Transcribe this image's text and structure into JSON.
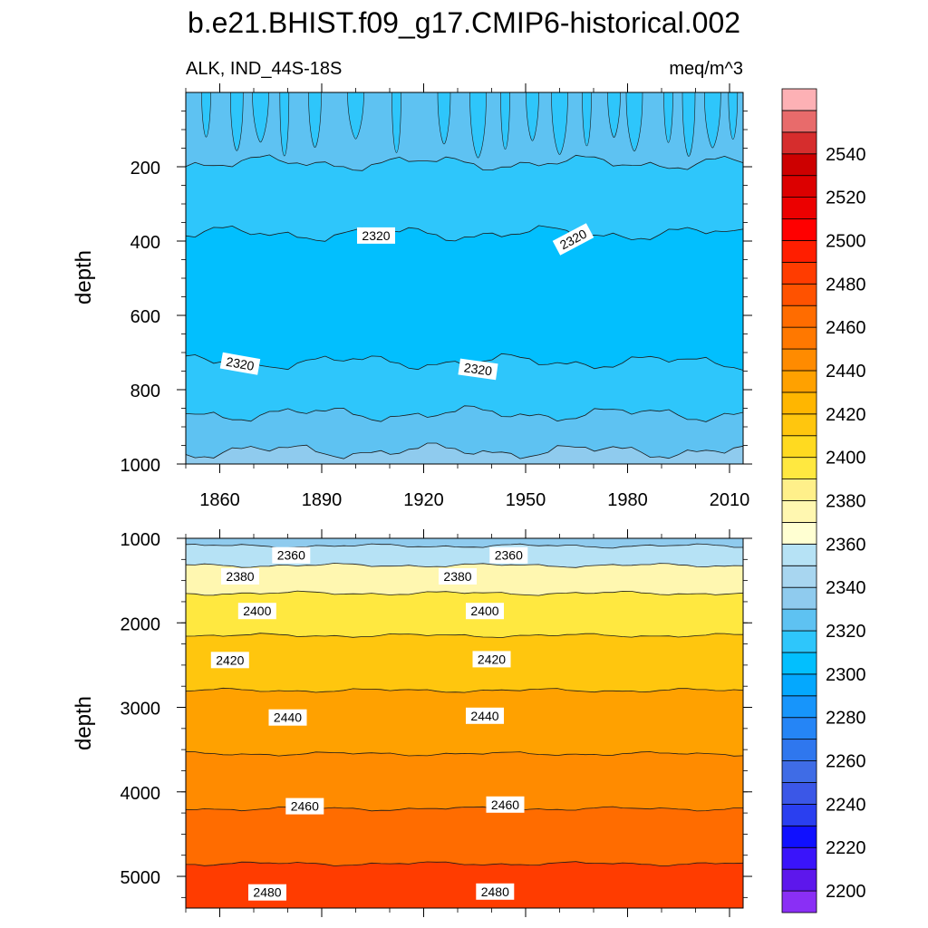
{
  "title": "b.e21.BHIST.f09_g17.CMIP6-historical.002",
  "subtitle_left": "ALK, IND_44S-18S",
  "subtitle_right": "meq/m^3",
  "chart_data": [
    {
      "type": "contour",
      "panel": "upper",
      "xlabel": "",
      "ylabel": "depth",
      "xlim": [
        1850,
        2014
      ],
      "ylim": [
        1000,
        0
      ],
      "x_ticks": [
        1860,
        1890,
        1920,
        1950,
        1980,
        2010
      ],
      "x_tick_labels": [
        "1860",
        "1890",
        "1920",
        "1950",
        "1980",
        "2010"
      ],
      "y_ticks": [
        200,
        400,
        600,
        800,
        1000
      ],
      "y_tick_labels": [
        "200",
        "400",
        "600",
        "800",
        "1000"
      ],
      "bands": [
        {
          "from": 0,
          "to": 190,
          "value": 2330,
          "color": "#5ec2f2"
        },
        {
          "from": 190,
          "to": 380,
          "value": 2320,
          "color": "#2ec6fb"
        },
        {
          "from": 380,
          "to": 725,
          "value": 2310,
          "color": "#02bffe"
        },
        {
          "from": 725,
          "to": 865,
          "value": 2320,
          "color": "#2ec6fb"
        },
        {
          "from": 865,
          "to": 965,
          "value": 2330,
          "color": "#5ec2f2"
        },
        {
          "from": 965,
          "to": 1000,
          "value": 2340,
          "color": "#8fcbee"
        }
      ],
      "contour_labels": [
        {
          "text": "2320",
          "x": 1906,
          "depth": 385,
          "angle": 0
        },
        {
          "text": "2320",
          "x": 1964,
          "depth": 395,
          "angle": -28
        },
        {
          "text": "2320",
          "x": 1866,
          "depth": 730,
          "angle": 10
        },
        {
          "text": "2320",
          "x": 1936,
          "depth": 745,
          "angle": 8
        }
      ]
    },
    {
      "type": "contour",
      "panel": "lower",
      "xlabel": "",
      "ylabel": "depth",
      "xlim": [
        1850,
        2014
      ],
      "ylim": [
        5375,
        1000
      ],
      "x_ticks": [
        1860,
        1890,
        1920,
        1950,
        1980,
        2010
      ],
      "x_tick_labels": [],
      "y_ticks": [
        1000,
        2000,
        3000,
        4000,
        5000
      ],
      "y_tick_labels": [
        "1000",
        "2000",
        "3000",
        "4000",
        "5000"
      ],
      "bands": [
        {
          "from": 1000,
          "to": 1090,
          "value": 2350,
          "color": "#8fcbee"
        },
        {
          "from": 1090,
          "to": 1320,
          "value": 2360,
          "color": "#b6e2f5"
        },
        {
          "from": 1320,
          "to": 1650,
          "value": 2380,
          "color": "#fff7b0"
        },
        {
          "from": 1650,
          "to": 2150,
          "value": 2400,
          "color": "#ffe840"
        },
        {
          "from": 2150,
          "to": 2800,
          "value": 2420,
          "color": "#ffc60e"
        },
        {
          "from": 2800,
          "to": 3550,
          "value": 2440,
          "color": "#ffa100"
        },
        {
          "from": 3550,
          "to": 4200,
          "value": 2450,
          "color": "#ff8b00"
        },
        {
          "from": 4200,
          "to": 4850,
          "value": 2460,
          "color": "#ff6c00"
        },
        {
          "from": 4850,
          "to": 5375,
          "value": 2480,
          "color": "#ff3c00"
        }
      ],
      "contour_labels": [
        {
          "text": "2360",
          "x": 1881,
          "depth": 1200,
          "angle": 0
        },
        {
          "text": "2360",
          "x": 1945,
          "depth": 1200,
          "angle": 0
        },
        {
          "text": "2380",
          "x": 1866,
          "depth": 1450,
          "angle": 0
        },
        {
          "text": "2380",
          "x": 1930,
          "depth": 1450,
          "angle": 0
        },
        {
          "text": "2400",
          "x": 1871,
          "depth": 1860,
          "angle": 0
        },
        {
          "text": "2400",
          "x": 1938,
          "depth": 1860,
          "angle": 0
        },
        {
          "text": "2420",
          "x": 1863,
          "depth": 2440,
          "angle": 0
        },
        {
          "text": "2420",
          "x": 1940,
          "depth": 2430,
          "angle": 0
        },
        {
          "text": "2440",
          "x": 1880,
          "depth": 3120,
          "angle": 0
        },
        {
          "text": "2440",
          "x": 1938,
          "depth": 3100,
          "angle": 0
        },
        {
          "text": "2460",
          "x": 1885,
          "depth": 4170,
          "angle": 0
        },
        {
          "text": "2460",
          "x": 1944,
          "depth": 4150,
          "angle": 0
        },
        {
          "text": "2480",
          "x": 1874,
          "depth": 5190,
          "angle": 0
        },
        {
          "text": "2480",
          "x": 1941,
          "depth": 5180,
          "angle": 0
        }
      ]
    }
  ],
  "colorbar": {
    "min": 2190,
    "step": 10,
    "labels": [
      "2540",
      "2520",
      "2500",
      "2480",
      "2460",
      "2440",
      "2420",
      "2400",
      "2380",
      "2360",
      "2340",
      "2320",
      "2300",
      "2280",
      "2260",
      "2240",
      "2220",
      "2200"
    ],
    "colors": [
      "#8a2ff5",
      "#5d17ec",
      "#3a14fa",
      "#1010ff",
      "#2a3ff0",
      "#3b57e7",
      "#3f6ce6",
      "#2f77ee",
      "#2585f6",
      "#1795fb",
      "#04a8fe",
      "#02bffe",
      "#2ec6fb",
      "#5ec2f2",
      "#8fcbee",
      "#a8d6f0",
      "#b6e2f5",
      "#ffffd2",
      "#fff7b0",
      "#fff08a",
      "#ffe840",
      "#ffda20",
      "#ffc60e",
      "#ffb600",
      "#ffa100",
      "#ff8b00",
      "#ff7800",
      "#ff6c00",
      "#ff5200",
      "#ff3c00",
      "#ff1e00",
      "#ff0000",
      "#ec0000",
      "#dc0000",
      "#cd0000",
      "#d62d2d",
      "#e86b6b",
      "#fdb1b5"
    ]
  }
}
